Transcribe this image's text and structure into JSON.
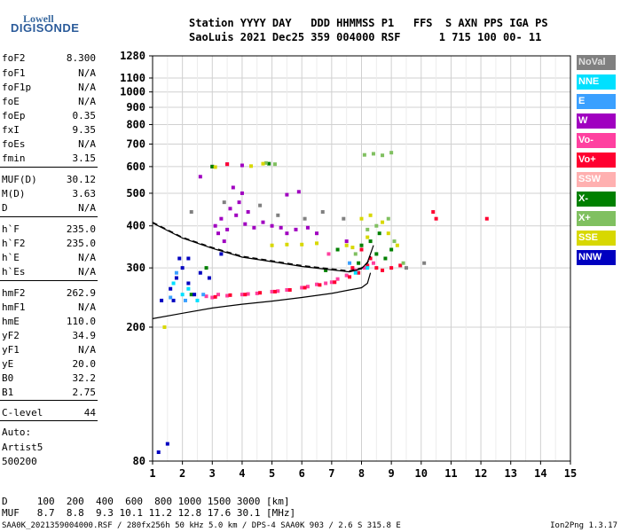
{
  "logo": {
    "line1": "Lowell",
    "line2": "DIGISONDE"
  },
  "header": {
    "labels": "Station YYYY DAY   DDD HHMMSS P1   FFS  S AXN PPS IGA PS",
    "values": "SaoLuis 2021 Dec25 359 004000 RSF      1 715 100 00- 11"
  },
  "params": [
    {
      "name": "foF2",
      "value": "8.300"
    },
    {
      "name": "foF1",
      "value": "N/A"
    },
    {
      "name": "foF1p",
      "value": "N/A"
    },
    {
      "name": "foE",
      "value": "N/A"
    },
    {
      "name": "foEp",
      "value": "0.35"
    },
    {
      "name": "fxI",
      "value": "9.35"
    },
    {
      "name": "foEs",
      "value": "N/A"
    },
    {
      "name": "fmin",
      "value": "3.15"
    },
    {
      "name": "MUF(D)",
      "value": "30.12"
    },
    {
      "name": "M(D)",
      "value": "3.63"
    },
    {
      "name": "D",
      "value": "N/A"
    },
    {
      "name": "h`F",
      "value": "235.0"
    },
    {
      "name": "h`F2",
      "value": "235.0"
    },
    {
      "name": "h`E",
      "value": "N/A"
    },
    {
      "name": "h`Es",
      "value": "N/A"
    },
    {
      "name": "hmF2",
      "value": "262.9"
    },
    {
      "name": "hmF1",
      "value": "N/A"
    },
    {
      "name": "hmE",
      "value": "110.0"
    },
    {
      "name": "yF2",
      "value": "34.9"
    },
    {
      "name": "yF1",
      "value": "N/A"
    },
    {
      "name": "yE",
      "value": "20.0"
    },
    {
      "name": "B0",
      "value": "32.2"
    },
    {
      "name": "B1",
      "value": "2.75"
    },
    {
      "name": "C-level",
      "value": "44"
    }
  ],
  "auto": {
    "line1": "Auto:",
    "line2": "Artist5",
    "line3": "500200"
  },
  "legend": [
    {
      "label": "NoVal",
      "bg": "#808080",
      "fg": "#e0e0e0"
    },
    {
      "label": "NNE",
      "bg": "#00e0ff",
      "fg": "#ffffff"
    },
    {
      "label": "E",
      "bg": "#3aa0ff",
      "fg": "#ffffff"
    },
    {
      "label": "W",
      "bg": "#a000c0",
      "fg": "#ffffff"
    },
    {
      "label": "Vo-",
      "bg": "#ff40a0",
      "fg": "#ffffff"
    },
    {
      "label": "Vo+",
      "bg": "#ff0030",
      "fg": "#ffffff"
    },
    {
      "label": "SSW",
      "bg": "#ffb0b0",
      "fg": "#ffffff"
    },
    {
      "label": "X-",
      "bg": "#008000",
      "fg": "#ffffff"
    },
    {
      "label": "X+",
      "bg": "#80c060",
      "fg": "#ffffff"
    },
    {
      "label": "SSE",
      "bg": "#d8d800",
      "fg": "#ffffff"
    },
    {
      "label": "NNW",
      "bg": "#0000c0",
      "fg": "#ffffff"
    }
  ],
  "muf_table": {
    "d_row": "D     100  200  400  600  800 1000 1500 3000 [km]",
    "muf_row": "MUF   8.7  8.8  9.3 10.1 11.2 12.8 17.6 30.1 [MHz]"
  },
  "footer": {
    "left": "SAA0K_2021359004000.RSF / 280fx256h 50 kHz 5.0 km / DPS-4 SAA0K 903 / 2.6 S 315.8 E",
    "right": "Ion2Png 1.3.17"
  },
  "chart_data": {
    "type": "scatter",
    "xlim": [
      1,
      15
    ],
    "ylim": [
      80,
      1280
    ],
    "y_scale": "log",
    "x_ticks": [
      1,
      2,
      3,
      4,
      5,
      6,
      7,
      8,
      9,
      10,
      11,
      12,
      13,
      14,
      15
    ],
    "y_ticks": [
      80,
      200,
      300,
      400,
      500,
      600,
      700,
      800,
      900,
      1000,
      1100,
      1280
    ],
    "grid": true,
    "series": [
      {
        "name": "W",
        "color": "#a000c0",
        "points": [
          [
            3.1,
            400
          ],
          [
            3.3,
            420
          ],
          [
            3.5,
            390
          ],
          [
            3.8,
            430
          ],
          [
            4.1,
            405
          ],
          [
            4.4,
            395
          ],
          [
            4.7,
            410
          ],
          [
            5.0,
            400
          ],
          [
            5.3,
            395
          ],
          [
            3.6,
            450
          ],
          [
            3.9,
            470
          ],
          [
            3.2,
            380
          ],
          [
            4.2,
            440
          ],
          [
            3.4,
            360
          ],
          [
            4.0,
            500
          ],
          [
            3.7,
            520
          ],
          [
            5.5,
            380
          ],
          [
            5.8,
            390
          ],
          [
            6.2,
            395
          ],
          [
            3.0,
            600
          ],
          [
            3.5,
            610
          ],
          [
            4.0,
            605
          ],
          [
            2.6,
            560
          ],
          [
            5.5,
            495
          ],
          [
            5.9,
            505
          ],
          [
            7.5,
            360
          ],
          [
            6.5,
            380
          ]
        ]
      },
      {
        "name": "Vo-",
        "color": "#ff40a0",
        "points": [
          [
            3.0,
            245
          ],
          [
            3.5,
            248
          ],
          [
            4.0,
            250
          ],
          [
            4.5,
            252
          ],
          [
            5.0,
            255
          ],
          [
            5.5,
            258
          ],
          [
            6.0,
            262
          ],
          [
            6.5,
            268
          ],
          [
            7.0,
            272
          ],
          [
            7.5,
            285
          ],
          [
            7.8,
            295
          ],
          [
            8.1,
            300
          ],
          [
            3.2,
            250
          ],
          [
            4.2,
            251
          ],
          [
            5.2,
            256
          ],
          [
            6.2,
            264
          ],
          [
            6.8,
            270
          ],
          [
            7.2,
            278
          ],
          [
            8.4,
            310
          ],
          [
            6.9,
            330
          ],
          [
            2.8,
            247
          ]
        ]
      },
      {
        "name": "Vo+",
        "color": "#ff0030",
        "points": [
          [
            3.1,
            246
          ],
          [
            3.6,
            249
          ],
          [
            4.1,
            250
          ],
          [
            4.6,
            253
          ],
          [
            5.1,
            255
          ],
          [
            5.6,
            258
          ],
          [
            6.1,
            262
          ],
          [
            6.6,
            267
          ],
          [
            7.1,
            272
          ],
          [
            7.6,
            282
          ],
          [
            7.9,
            290
          ],
          [
            8.2,
            305
          ],
          [
            8.3,
            320
          ],
          [
            8.0,
            340
          ],
          [
            7.7,
            300
          ],
          [
            8.5,
            300
          ],
          [
            8.7,
            295
          ],
          [
            9.0,
            300
          ],
          [
            9.3,
            305
          ],
          [
            10.5,
            420
          ],
          [
            12.2,
            420
          ],
          [
            10.4,
            440
          ],
          [
            3.5,
            610
          ]
        ]
      },
      {
        "name": "X-",
        "color": "#008000",
        "points": [
          [
            8.0,
            350
          ],
          [
            8.3,
            360
          ],
          [
            8.5,
            330
          ],
          [
            8.8,
            320
          ],
          [
            9.0,
            340
          ],
          [
            7.9,
            310
          ],
          [
            8.6,
            380
          ],
          [
            2.3,
            250
          ],
          [
            2.8,
            300
          ],
          [
            6.8,
            295
          ],
          [
            3.0,
            600
          ],
          [
            4.9,
            612
          ],
          [
            7.2,
            340
          ]
        ]
      },
      {
        "name": "X+",
        "color": "#80c060",
        "points": [
          [
            8.2,
            390
          ],
          [
            8.5,
            400
          ],
          [
            8.9,
            420
          ],
          [
            9.1,
            360
          ],
          [
            7.8,
            330
          ],
          [
            8.1,
            650
          ],
          [
            8.4,
            655
          ],
          [
            8.7,
            648
          ],
          [
            9.0,
            660
          ],
          [
            4.8,
            615
          ],
          [
            5.1,
            610
          ],
          [
            9.4,
            310
          ]
        ]
      },
      {
        "name": "SSE",
        "color": "#d8d800",
        "points": [
          [
            8.0,
            420
          ],
          [
            8.3,
            430
          ],
          [
            8.7,
            410
          ],
          [
            8.9,
            380
          ],
          [
            9.2,
            350
          ],
          [
            7.7,
            345
          ],
          [
            7.5,
            350
          ],
          [
            5.0,
            350
          ],
          [
            5.5,
            352
          ],
          [
            6.0,
            352
          ],
          [
            6.5,
            355
          ],
          [
            3.1,
            598
          ],
          [
            4.3,
            602
          ],
          [
            4.7,
            612
          ],
          [
            8.2,
            370
          ],
          [
            1.4,
            200
          ]
        ]
      },
      {
        "name": "NNW",
        "color": "#0000c0",
        "points": [
          [
            1.6,
            260
          ],
          [
            1.8,
            280
          ],
          [
            2.0,
            300
          ],
          [
            2.2,
            270
          ],
          [
            2.4,
            250
          ],
          [
            1.9,
            320
          ],
          [
            1.3,
            240
          ],
          [
            2.6,
            290
          ],
          [
            1.5,
            90
          ],
          [
            1.2,
            85
          ],
          [
            2.2,
            320
          ],
          [
            2.9,
            280
          ],
          [
            3.3,
            330
          ],
          [
            1.7,
            240
          ]
        ]
      },
      {
        "name": "NNE",
        "color": "#00e0ff",
        "points": [
          [
            2.0,
            250
          ],
          [
            2.2,
            260
          ],
          [
            1.7,
            270
          ],
          [
            2.5,
            240
          ],
          [
            7.8,
            290
          ],
          [
            8.2,
            300
          ]
        ]
      },
      {
        "name": "E",
        "color": "#3aa0ff",
        "points": [
          [
            1.6,
            245
          ],
          [
            1.8,
            290
          ],
          [
            2.1,
            240
          ],
          [
            2.7,
            250
          ],
          [
            7.6,
            310
          ]
        ]
      },
      {
        "name": "NoVal",
        "color": "#808080",
        "points": [
          [
            2.3,
            440
          ],
          [
            3.4,
            470
          ],
          [
            4.6,
            460
          ],
          [
            5.2,
            430
          ],
          [
            6.1,
            420
          ],
          [
            6.7,
            440
          ],
          [
            7.4,
            420
          ],
          [
            9.5,
            300
          ],
          [
            10.1,
            310
          ]
        ]
      }
    ],
    "curves": [
      {
        "name": "profile-solid",
        "style": "solid",
        "points": [
          [
            1.0,
            212
          ],
          [
            2.0,
            220
          ],
          [
            3.0,
            228
          ],
          [
            4.0,
            234
          ],
          [
            5.0,
            239
          ],
          [
            6.0,
            245
          ],
          [
            7.0,
            252
          ],
          [
            7.6,
            258
          ],
          [
            8.0,
            262
          ],
          [
            8.2,
            270
          ],
          [
            8.3,
            290
          ]
        ]
      },
      {
        "name": "trace-dashed",
        "style": "dashed",
        "points": [
          [
            1.0,
            410
          ],
          [
            2.0,
            370
          ],
          [
            3.0,
            345
          ],
          [
            4.0,
            325
          ],
          [
            5.0,
            315
          ],
          [
            6.0,
            305
          ],
          [
            7.0,
            298
          ],
          [
            7.6,
            294
          ],
          [
            8.0,
            300
          ],
          [
            8.2,
            310
          ],
          [
            8.3,
            325
          ]
        ]
      },
      {
        "name": "trace-solid",
        "style": "solid",
        "points": [
          [
            1.0,
            408
          ],
          [
            2.0,
            368
          ],
          [
            3.0,
            343
          ],
          [
            4.0,
            323
          ],
          [
            5.0,
            313
          ],
          [
            6.0,
            303
          ],
          [
            7.0,
            296
          ],
          [
            7.6,
            292
          ],
          [
            8.0,
            298
          ],
          [
            8.2,
            312
          ],
          [
            8.3,
            330
          ],
          [
            8.4,
            350
          ]
        ]
      }
    ]
  }
}
